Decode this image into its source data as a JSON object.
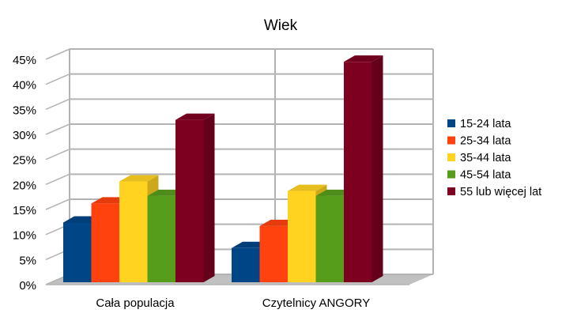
{
  "chart_data": {
    "type": "bar",
    "title": "Wiek",
    "xlabel": "",
    "ylabel": "",
    "ylim": [
      0,
      45
    ],
    "yticks": [
      "0%",
      "5%",
      "10%",
      "15%",
      "20%",
      "25%",
      "30%",
      "35%",
      "40%",
      "45%"
    ],
    "categories": [
      "Cała populacja",
      "Czytelnicy ANGORY"
    ],
    "series": [
      {
        "name": "15-24 lata",
        "color": "#004586",
        "values": [
          12.4,
          7.3
        ]
      },
      {
        "name": "25-34 lata",
        "color": "#ff420e",
        "values": [
          16.2,
          11.7
        ]
      },
      {
        "name": "35-44 lata",
        "color": "#ffd320",
        "values": [
          20.6,
          18.7
        ]
      },
      {
        "name": "45-54 lata",
        "color": "#579d1c",
        "values": [
          17.7,
          17.7
        ]
      },
      {
        "name": "55 lub więcej lat",
        "color": "#7e0021",
        "values": [
          32.9,
          44.5
        ]
      }
    ],
    "grid": true,
    "legend": "right",
    "three_d": true
  }
}
